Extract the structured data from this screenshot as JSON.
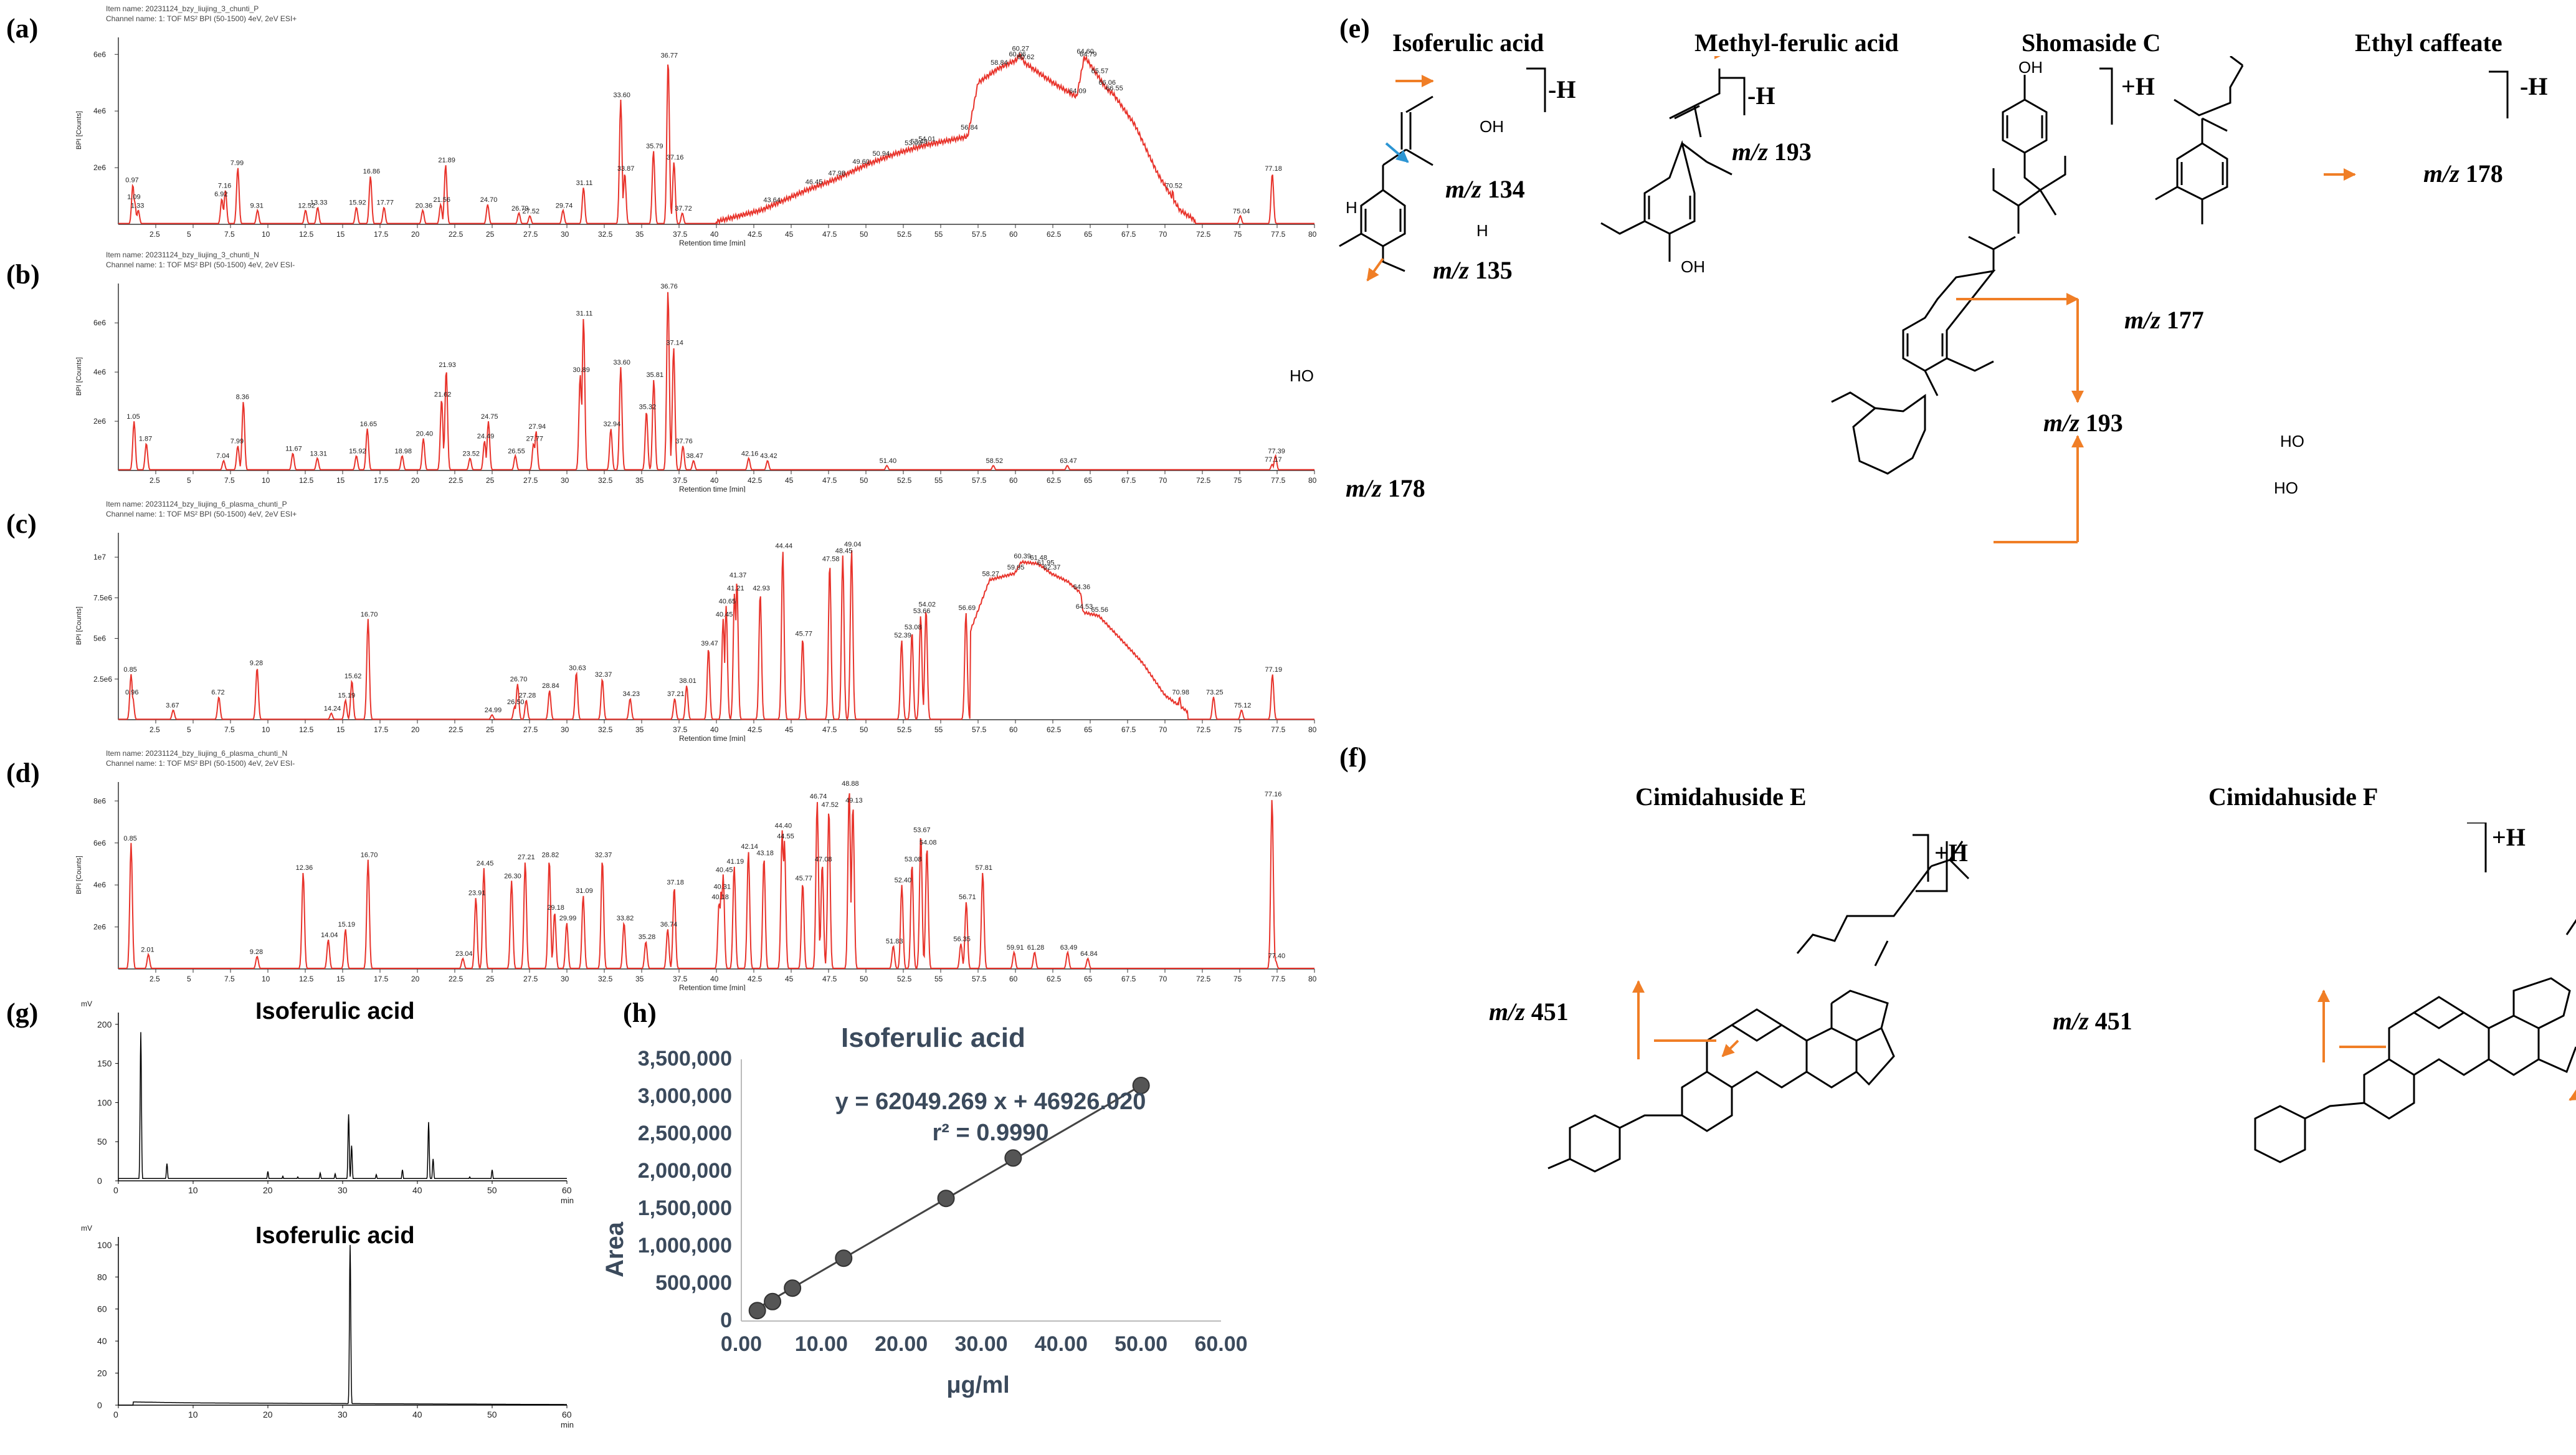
{
  "panel_labels": {
    "a": "(a)",
    "b": "(b)",
    "c": "(c)",
    "d": "(d)",
    "e": "(e)",
    "f": "(f)",
    "g": "(g)",
    "h": "(h)"
  },
  "chromatograms": [
    {
      "id": "a",
      "item_name": "Item name: 20231124_bzy_liujing_3_chunti_P",
      "channel_name": "Channel name: 1: TOF MS² BPI (50-1500) 4eV, 2eV ESI+",
      "y_axis_label": "BPI [Counts]",
      "y_ticks": [
        "6e6",
        "4e6",
        "2e6"
      ],
      "x_axis_label": "Retention time [min]",
      "ymax": 6.6,
      "peaks": [
        [
          0.97,
          1.4,
          "0.97"
        ],
        [
          1.09,
          0.8,
          "1.09"
        ],
        [
          1.33,
          0.5,
          "1.33"
        ],
        [
          6.92,
          0.9,
          "6.92"
        ],
        [
          7.16,
          1.2,
          "7.16"
        ],
        [
          7.99,
          2.0,
          "7.99"
        ],
        [
          9.31,
          0.5,
          "9.31"
        ],
        [
          12.52,
          0.5,
          "12.52"
        ],
        [
          13.33,
          0.6,
          "13.33"
        ],
        [
          15.92,
          0.6,
          "15.92"
        ],
        [
          16.86,
          1.7,
          "16.86"
        ],
        [
          17.77,
          0.6,
          "17.77"
        ],
        [
          20.36,
          0.5,
          "20.36"
        ],
        [
          21.56,
          0.7,
          "21.56"
        ],
        [
          21.89,
          2.1,
          "21.89"
        ],
        [
          24.7,
          0.7,
          "24.70"
        ],
        [
          26.79,
          0.4,
          "26.79"
        ],
        [
          27.52,
          0.3,
          "27.52"
        ],
        [
          29.74,
          0.5,
          "29.74"
        ],
        [
          31.11,
          1.3,
          "31.11"
        ],
        [
          33.6,
          4.4,
          "33.60"
        ],
        [
          33.87,
          1.8,
          "33.87"
        ],
        [
          35.79,
          2.6,
          "35.79"
        ],
        [
          36.77,
          5.8,
          "36.77"
        ],
        [
          37.16,
          2.2,
          "37.16"
        ],
        [
          37.72,
          0.4,
          "37.72"
        ],
        [
          70.52,
          1.2,
          "70.52"
        ],
        [
          75.04,
          0.3,
          "75.04"
        ],
        [
          77.18,
          1.8,
          "77.18"
        ]
      ],
      "hump": [
        [
          40,
          0.1
        ],
        [
          43,
          0.5
        ],
        [
          46,
          1.2
        ],
        [
          48,
          1.6
        ],
        [
          50,
          2.1
        ],
        [
          52,
          2.5
        ],
        [
          54,
          2.8
        ],
        [
          56.8,
          3.1
        ],
        [
          57.5,
          5.0
        ],
        [
          58.84,
          5.5
        ],
        [
          60.06,
          5.8
        ],
        [
          60.27,
          6.0
        ],
        [
          60.62,
          5.7
        ],
        [
          62.5,
          5.0
        ],
        [
          64.09,
          4.5
        ],
        [
          64.6,
          5.9
        ],
        [
          64.79,
          5.8
        ],
        [
          65.57,
          5.2
        ],
        [
          66.06,
          4.8
        ],
        [
          66.55,
          4.6
        ],
        [
          68,
          3.5
        ],
        [
          69.5,
          1.8
        ],
        [
          71,
          0.5
        ],
        [
          72,
          0.15
        ]
      ],
      "hump_labels": [
        [
          43.64,
          "43.64"
        ],
        [
          46.45,
          "46.45"
        ],
        [
          47.98,
          "47.98"
        ],
        [
          49.6,
          "49.60"
        ],
        [
          50.94,
          "50.94"
        ],
        [
          53.09,
          "53.09"
        ],
        [
          53.48,
          "53.48"
        ],
        [
          54.01,
          "54.01"
        ],
        [
          56.84,
          "56.84"
        ],
        [
          58.84,
          "58.84"
        ],
        [
          60.06,
          "60.06"
        ],
        [
          60.27,
          "60.27"
        ],
        [
          60.62,
          "60.62"
        ],
        [
          64.09,
          "64.09"
        ],
        [
          64.6,
          "64.60"
        ],
        [
          64.79,
          "64.79"
        ],
        [
          65.57,
          "65.57"
        ],
        [
          66.06,
          "66.06"
        ],
        [
          66.55,
          "66.55"
        ]
      ]
    },
    {
      "id": "b",
      "item_name": "Item name: 20231124_bzy_liujing_3_chunti_N",
      "channel_name": "Channel name: 1: TOF MS² BPI (50-1500) 4eV, 2eV ESI-",
      "y_axis_label": "BPI [Counts]",
      "y_ticks": [
        "6e6",
        "4e6",
        "2e6"
      ],
      "x_axis_label": "Retention time [min]",
      "ymax": 7.6,
      "peaks": [
        [
          1.05,
          2.0,
          "1.05"
        ],
        [
          1.87,
          1.1,
          "1.87"
        ],
        [
          7.04,
          0.4,
          "7.04"
        ],
        [
          7.99,
          1.0,
          "7.99"
        ],
        [
          8.36,
          2.8,
          "8.36"
        ],
        [
          11.67,
          0.7,
          "11.67"
        ],
        [
          13.31,
          0.5,
          "13.31"
        ],
        [
          15.92,
          0.6,
          "15.92"
        ],
        [
          16.65,
          1.7,
          "16.65"
        ],
        [
          18.98,
          0.6,
          "18.98"
        ],
        [
          20.4,
          1.3,
          "20.40"
        ],
        [
          21.62,
          2.9,
          "21.62"
        ],
        [
          21.93,
          4.1,
          "21.93"
        ],
        [
          23.52,
          0.5,
          "23.52"
        ],
        [
          24.49,
          1.2,
          "24.49"
        ],
        [
          24.75,
          2.0,
          "24.75"
        ],
        [
          26.55,
          0.6,
          "26.55"
        ],
        [
          27.77,
          1.1,
          "27.77"
        ],
        [
          27.94,
          1.6,
          "27.94"
        ],
        [
          30.89,
          3.9,
          "30.89"
        ],
        [
          31.11,
          6.2,
          "31.11"
        ],
        [
          32.94,
          1.7,
          "32.94"
        ],
        [
          33.6,
          4.2,
          "33.60"
        ],
        [
          35.32,
          2.4,
          "35.32"
        ],
        [
          35.81,
          3.7,
          "35.81"
        ],
        [
          36.76,
          7.3,
          "36.76"
        ],
        [
          37.14,
          5.0,
          "37.14"
        ],
        [
          37.76,
          1.0,
          "37.76"
        ],
        [
          38.47,
          0.4,
          "38.47"
        ],
        [
          42.16,
          0.5,
          "42.16"
        ],
        [
          43.42,
          0.4,
          "43.42"
        ],
        [
          51.4,
          0.2,
          "51.40"
        ],
        [
          58.52,
          0.2,
          "58.52"
        ],
        [
          63.47,
          0.2,
          "63.47"
        ],
        [
          77.17,
          0.25,
          "77.17"
        ],
        [
          77.39,
          0.6,
          "77.39"
        ]
      ],
      "hump": [],
      "hump_labels": []
    },
    {
      "id": "c",
      "item_name": "Item name: 20231124_bzy_liujing_6_plasma_chunti_P",
      "channel_name": "Channel name: 1: TOF MS² BPI (50-1500) 4eV, 2eV ESI+",
      "y_axis_label": "BPI [Counts]",
      "y_ticks": [
        "1e7",
        "7.5e6",
        "5e6",
        "2.5e6"
      ],
      "x_axis_label": "Retention time [min]",
      "ymax": 11.5,
      "peaks": [
        [
          0.85,
          2.8,
          "0.85"
        ],
        [
          0.96,
          1.4,
          "0.96"
        ],
        [
          3.67,
          0.6,
          "3.67"
        ],
        [
          6.72,
          1.4,
          "6.72"
        ],
        [
          9.28,
          3.2,
          "9.28"
        ],
        [
          14.24,
          0.4,
          "14.24"
        ],
        [
          15.19,
          1.2,
          "15.19"
        ],
        [
          15.62,
          2.4,
          "15.62"
        ],
        [
          16.7,
          6.2,
          "16.70"
        ],
        [
          24.99,
          0.3,
          "24.99"
        ],
        [
          26.5,
          0.8,
          "26.50"
        ],
        [
          26.7,
          2.2,
          "26.70"
        ],
        [
          27.28,
          1.2,
          "27.28"
        ],
        [
          28.84,
          1.8,
          "28.84"
        ],
        [
          30.63,
          2.9,
          "30.63"
        ],
        [
          32.37,
          2.5,
          "32.37"
        ],
        [
          34.23,
          1.3,
          "34.23"
        ],
        [
          37.21,
          1.3,
          "37.21"
        ],
        [
          38.01,
          2.1,
          "38.01"
        ],
        [
          39.47,
          4.4,
          "39.47"
        ],
        [
          40.45,
          6.2,
          "40.45"
        ],
        [
          40.65,
          7.0,
          "40.65"
        ],
        [
          41.21,
          7.8,
          "41.21"
        ],
        [
          41.37,
          8.6,
          "41.37"
        ],
        [
          42.93,
          7.8,
          "42.93"
        ],
        [
          44.44,
          10.4,
          "44.44"
        ],
        [
          45.77,
          5.0,
          "45.77"
        ],
        [
          47.58,
          9.6,
          "47.58"
        ],
        [
          48.45,
          10.1,
          "48.45"
        ],
        [
          49.04,
          10.5,
          "49.04"
        ],
        [
          52.39,
          4.9,
          "52.39"
        ],
        [
          53.08,
          5.4,
          "53.08"
        ],
        [
          53.66,
          6.4,
          "53.66"
        ],
        [
          54.02,
          6.8,
          "54.02"
        ],
        [
          56.69,
          6.6,
          "56.69"
        ],
        [
          70.98,
          1.4,
          "70.98"
        ],
        [
          73.25,
          1.4,
          "73.25"
        ],
        [
          75.12,
          0.6,
          "75.12"
        ],
        [
          77.19,
          2.8,
          "77.19"
        ]
      ],
      "hump": [
        [
          57,
          5.5
        ],
        [
          58.27,
          8.6
        ],
        [
          59.95,
          9.0
        ],
        [
          60.39,
          9.7
        ],
        [
          61.48,
          9.6
        ],
        [
          61.95,
          9.3
        ],
        [
          62.37,
          9.0
        ],
        [
          63.5,
          8.5
        ],
        [
          64.36,
          7.8
        ],
        [
          64.53,
          6.6
        ],
        [
          65.56,
          6.4
        ],
        [
          67,
          5.0
        ],
        [
          68.5,
          3.5
        ],
        [
          70,
          1.5
        ],
        [
          71.5,
          0.5
        ]
      ],
      "hump_labels": [
        [
          58.27,
          "58.27"
        ],
        [
          59.95,
          "59.95"
        ],
        [
          60.39,
          "60.39"
        ],
        [
          61.48,
          "61.48"
        ],
        [
          61.95,
          "61.95"
        ],
        [
          62.37,
          "62.37"
        ],
        [
          64.36,
          "64.36"
        ],
        [
          64.53,
          "64.53"
        ],
        [
          65.56,
          "65.56"
        ]
      ]
    },
    {
      "id": "d",
      "item_name": "Item name: 20231124_bzy_liujing_6_plasma_chunti_N",
      "channel_name": "Channel name: 1: TOF MS² BPI (50-1500) 4eV, 2eV ESI-",
      "y_axis_label": "BPI [Counts]",
      "y_ticks": [
        "8e6",
        "6e6",
        "4e6",
        "2e6"
      ],
      "x_axis_label": "Retention time [min]",
      "ymax": 8.9,
      "peaks": [
        [
          0.85,
          6.0,
          "0.85"
        ],
        [
          2.01,
          0.7,
          "2.01"
        ],
        [
          9.28,
          0.6,
          "9.28"
        ],
        [
          12.36,
          4.6,
          "12.36"
        ],
        [
          14.04,
          1.4,
          "14.04"
        ],
        [
          15.19,
          1.9,
          "15.19"
        ],
        [
          16.7,
          5.2,
          "16.70"
        ],
        [
          23.04,
          0.5,
          "23.04"
        ],
        [
          23.91,
          3.4,
          "23.91"
        ],
        [
          24.45,
          4.8,
          "24.45"
        ],
        [
          26.3,
          4.2,
          "26.30"
        ],
        [
          27.21,
          5.1,
          "27.21"
        ],
        [
          28.82,
          5.2,
          "28.82"
        ],
        [
          29.18,
          2.7,
          "29.18"
        ],
        [
          29.99,
          2.2,
          "29.99"
        ],
        [
          31.09,
          3.5,
          "31.09"
        ],
        [
          32.37,
          5.2,
          "32.37"
        ],
        [
          33.82,
          2.2,
          "33.82"
        ],
        [
          35.28,
          1.3,
          "35.28"
        ],
        [
          36.74,
          1.9,
          "36.74"
        ],
        [
          37.18,
          3.9,
          "37.18"
        ],
        [
          40.18,
          3.2,
          "40.18"
        ],
        [
          40.31,
          3.7,
          "40.31"
        ],
        [
          40.45,
          4.5,
          "40.45"
        ],
        [
          41.19,
          4.9,
          "41.19"
        ],
        [
          42.14,
          5.6,
          "42.14"
        ],
        [
          43.18,
          5.3,
          "43.18"
        ],
        [
          44.4,
          6.6,
          "44.40"
        ],
        [
          44.55,
          6.1,
          "44.55"
        ],
        [
          45.77,
          4.1,
          "45.77"
        ],
        [
          47.08,
          5.0,
          "47.08"
        ],
        [
          46.74,
          8.0,
          "46.74"
        ],
        [
          47.52,
          7.6,
          "47.52"
        ],
        [
          48.88,
          8.6,
          "48.88"
        ],
        [
          49.13,
          7.8,
          "49.13"
        ],
        [
          51.83,
          1.1,
          "51.83"
        ],
        [
          52.4,
          4.0,
          "52.40"
        ],
        [
          53.08,
          5.0,
          "53.08"
        ],
        [
          53.67,
          6.4,
          "53.67"
        ],
        [
          54.08,
          5.8,
          "54.08"
        ],
        [
          56.35,
          1.2,
          "56.35"
        ],
        [
          56.71,
          3.2,
          "56.71"
        ],
        [
          57.81,
          4.6,
          "57.81"
        ],
        [
          59.91,
          0.8,
          "59.91"
        ],
        [
          61.28,
          0.8,
          "61.28"
        ],
        [
          63.49,
          0.8,
          "63.49"
        ],
        [
          64.84,
          0.5,
          "64.84"
        ],
        [
          77.16,
          8.1,
          "77.16"
        ],
        [
          77.4,
          0.4,
          "77.40"
        ]
      ],
      "hump": [],
      "hump_labels": []
    }
  ],
  "x_ticks": [
    "2.5",
    "5",
    "7.5",
    "10",
    "12.5",
    "15",
    "17.5",
    "20",
    "22.5",
    "25",
    "27.5",
    "30",
    "32.5",
    "35",
    "37.5",
    "40",
    "42.5",
    "45",
    "47.5",
    "50",
    "52.5",
    "55",
    "57.5",
    "60",
    "62.5",
    "65",
    "67.5",
    "70",
    "72.5",
    "75",
    "77.5",
    "80"
  ],
  "hplc": {
    "top": {
      "title": "Isoferulic acid",
      "unit": "mV",
      "y_ticks": [
        "200",
        "150",
        "100",
        "50",
        "0"
      ],
      "x_ticks": [
        "0",
        "10",
        "20",
        "30",
        "40",
        "50",
        "60"
      ],
      "x_unit": "min"
    },
    "bottom": {
      "title": "Isoferulic acid",
      "unit": "mV",
      "y_ticks": [
        "100",
        "80",
        "60",
        "40",
        "20",
        "0"
      ],
      "x_ticks": [
        "0",
        "10",
        "20",
        "30",
        "40",
        "50",
        "60"
      ],
      "x_unit": "min"
    }
  },
  "chart_data": {
    "type": "scatter",
    "title": "Isoferulic acid",
    "xlabel": "μg/ml",
    "ylabel": "Area",
    "xlim": [
      0,
      60
    ],
    "ylim": [
      0,
      3500000
    ],
    "x_ticks": [
      "0.00",
      "10.00",
      "20.00",
      "30.00",
      "40.00",
      "50.00",
      "60.00"
    ],
    "y_ticks": [
      "0",
      "500,000",
      "1,000,000",
      "1,500,000",
      "2,000,000",
      "2,500,000",
      "3,000,000",
      "3,500,000"
    ],
    "points": [
      [
        2.0,
        140000
      ],
      [
        3.9,
        260000
      ],
      [
        6.4,
        440000
      ],
      [
        12.8,
        840000
      ],
      [
        25.6,
        1640000
      ],
      [
        34.0,
        2180000
      ],
      [
        50.0,
        3150000
      ]
    ],
    "equation": "y = 62049.269 x + 46926.020",
    "r2": "r² = 0.9990",
    "fit": {
      "slope": 62049.269,
      "intercept": 46926.02
    }
  },
  "compounds_e": [
    {
      "name": "Isoferulic acid",
      "adduct": "-H",
      "fragments": [
        "134",
        "135",
        "178"
      ]
    },
    {
      "name": "Methyl-ferulic acid",
      "adduct": "-H",
      "fragments": [
        "193"
      ]
    },
    {
      "name": "Shomaside C",
      "adduct": "+H",
      "fragments": [
        "177",
        "193"
      ]
    },
    {
      "name": "Ethyl caffeate",
      "adduct": "-H",
      "fragments": [
        "178"
      ]
    }
  ],
  "compounds_f": [
    {
      "name": "Cimidahuside E",
      "adduct": "+H",
      "fragments": [
        "451"
      ]
    },
    {
      "name": "Cimidahuside F",
      "adduct": "+H",
      "fragments": [
        "451"
      ]
    }
  ],
  "mz_prefix": "m/z",
  "atom_labels": {
    "oh": "OH",
    "ho": "HO",
    "h": "H",
    "o": "O"
  },
  "colors": {
    "trace": "#e8332b",
    "arrow_orange": "#f07e26",
    "arrow_blue": "#2c95d3",
    "title_blue": "#3b4a5c"
  }
}
